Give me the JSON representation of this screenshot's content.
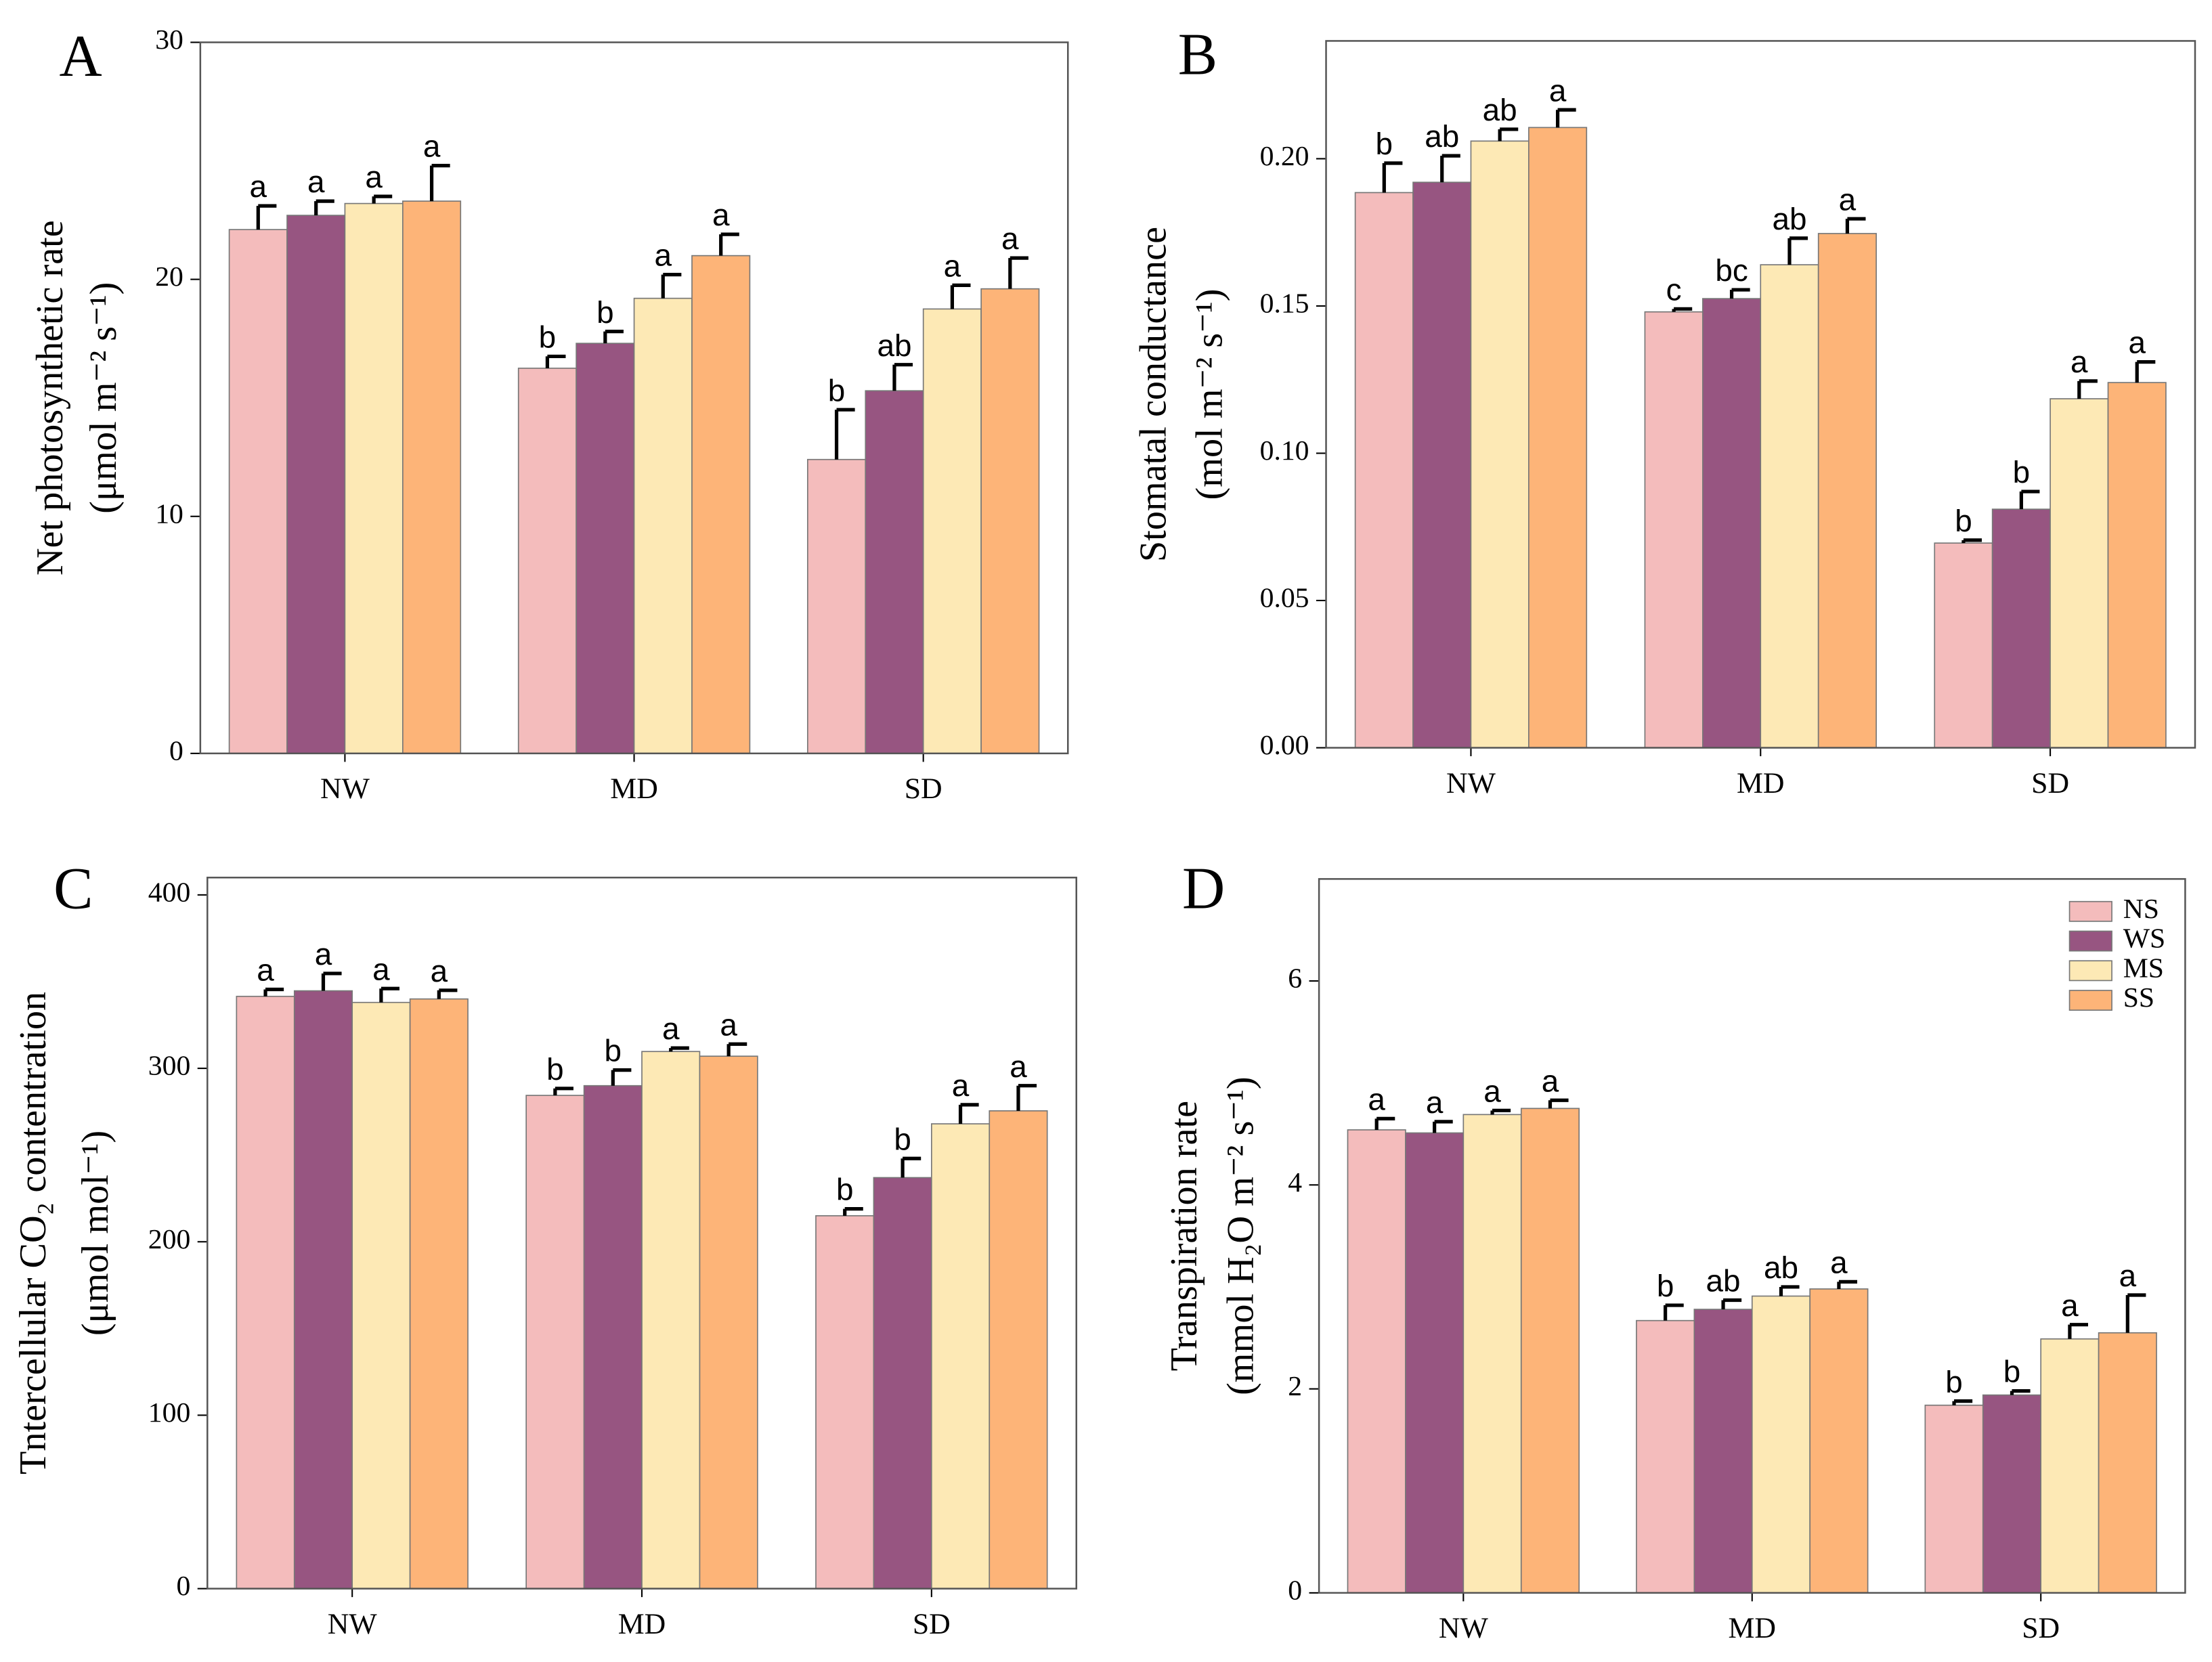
{
  "chart_data": [
    {
      "type": "bar",
      "panel": "A",
      "ylabel": [
        "Net photosynthetic rate",
        "(μmol m⁻² s⁻¹)"
      ],
      "categories": [
        "NW",
        "MD",
        "SD"
      ],
      "ylim": [
        0,
        30
      ],
      "yticks": [
        0,
        10,
        20,
        30
      ],
      "series": [
        {
          "name": "NS",
          "color": "#f4bcbc",
          "values": [
            22.1,
            16.25,
            12.4
          ],
          "errors": [
            1.0,
            0.5,
            2.1
          ],
          "letters": [
            "a",
            "b",
            "b"
          ]
        },
        {
          "name": "WS",
          "color": "#975581",
          "values": [
            22.7,
            17.3,
            15.3
          ],
          "errors": [
            0.6,
            0.5,
            1.1
          ],
          "letters": [
            "a",
            "b",
            "ab"
          ]
        },
        {
          "name": "MS",
          "color": "#fde9b5",
          "values": [
            23.2,
            19.2,
            18.75
          ],
          "errors": [
            0.3,
            1.0,
            1.0
          ],
          "letters": [
            "a",
            "a",
            "a"
          ]
        },
        {
          "name": "SS",
          "color": "#fdb478",
          "values": [
            23.3,
            21.0,
            19.6
          ],
          "errors": [
            1.5,
            0.9,
            1.3
          ],
          "letters": [
            "a",
            "a",
            "a"
          ]
        }
      ]
    },
    {
      "type": "bar",
      "panel": "B",
      "ylabel": [
        "Stomatal  conductance",
        "(mol m⁻² s⁻¹)"
      ],
      "categories": [
        "NW",
        "MD",
        "SD"
      ],
      "ylim": [
        0,
        0.24
      ],
      "yticks": [
        {
          "value": 0,
          "label": "0.00"
        },
        0.05,
        {
          "value": 0.1,
          "label": "0.10"
        },
        0.15,
        {
          "value": 0.2,
          "label": "0.20"
        }
      ],
      "series": [
        {
          "name": "NS",
          "color": "#f4bcbc",
          "values": [
            0.1885,
            0.148,
            0.0695
          ],
          "errors": [
            0.01,
            0.001,
            0.001
          ],
          "letters": [
            "b",
            "c",
            "b"
          ]
        },
        {
          "name": "WS",
          "color": "#975581",
          "values": [
            0.192,
            0.1525,
            0.081
          ],
          "errors": [
            0.009,
            0.003,
            0.006
          ],
          "letters": [
            "ab",
            "bc",
            "b"
          ]
        },
        {
          "name": "MS",
          "color": "#fde9b5",
          "values": [
            0.206,
            0.164,
            0.1185
          ],
          "errors": [
            0.004,
            0.009,
            0.006
          ],
          "letters": [
            "ab",
            "ab",
            "a"
          ]
        },
        {
          "name": "SS",
          "color": "#fdb478",
          "values": [
            0.2106,
            0.1746,
            0.124
          ],
          "errors": [
            0.006,
            0.005,
            0.007
          ],
          "letters": [
            "a",
            "a",
            "a"
          ]
        }
      ]
    },
    {
      "type": "bar",
      "panel": "C",
      "ylabel": [
        "Tntercellular CO₂ contentration",
        "(μmol mol⁻¹)"
      ],
      "categories": [
        "NW",
        "MD",
        "SD"
      ],
      "ylim": [
        0,
        410
      ],
      "yticks": [
        0,
        100,
        200,
        300,
        400
      ],
      "series": [
        {
          "name": "NS",
          "color": "#f4bcbc",
          "values": [
            341.5,
            284.4,
            215
          ],
          "errors": [
            4,
            4,
            4
          ],
          "letters": [
            "a",
            "b",
            "b"
          ]
        },
        {
          "name": "WS",
          "color": "#975581",
          "values": [
            344.7,
            290,
            237
          ],
          "errors": [
            10,
            9,
            11
          ],
          "letters": [
            "a",
            "b",
            "b"
          ]
        },
        {
          "name": "MS",
          "color": "#fde9b5",
          "values": [
            338,
            309.7,
            268
          ],
          "errors": [
            8,
            2,
            11
          ],
          "letters": [
            "a",
            "a",
            "a"
          ]
        },
        {
          "name": "SS",
          "color": "#fdb478",
          "values": [
            340,
            307,
            275.5
          ],
          "errors": [
            5,
            7,
            14.5
          ],
          "letters": [
            "a",
            "a",
            "a"
          ]
        }
      ]
    },
    {
      "type": "bar",
      "panel": "D",
      "ylabel": [
        "Transpiration rate",
        "(mmol H₂O m⁻² s⁻¹)"
      ],
      "categories": [
        "NW",
        "MD",
        "SD"
      ],
      "ylim": [
        0,
        7
      ],
      "yticks": [
        0,
        2,
        4,
        6
      ],
      "legend": "upper right",
      "series": [
        {
          "name": "NS",
          "color": "#f4bcbc",
          "values": [
            4.54,
            2.67,
            1.84
          ],
          "errors": [
            0.11,
            0.15,
            0.04
          ],
          "letters": [
            "a",
            "b",
            "b"
          ]
        },
        {
          "name": "WS",
          "color": "#975581",
          "values": [
            4.51,
            2.78,
            1.94
          ],
          "errors": [
            0.11,
            0.09,
            0.04
          ],
          "letters": [
            "a",
            "ab",
            "b"
          ]
        },
        {
          "name": "MS",
          "color": "#fde9b5",
          "values": [
            4.69,
            2.91,
            2.49
          ],
          "errors": [
            0.04,
            0.09,
            0.14
          ],
          "letters": [
            "a",
            "ab",
            "a"
          ]
        },
        {
          "name": "SS",
          "color": "#fdb478",
          "values": [
            4.75,
            2.98,
            2.55
          ],
          "errors": [
            0.08,
            0.07,
            0.37
          ],
          "letters": [
            "a",
            "a",
            "a"
          ]
        }
      ]
    }
  ]
}
